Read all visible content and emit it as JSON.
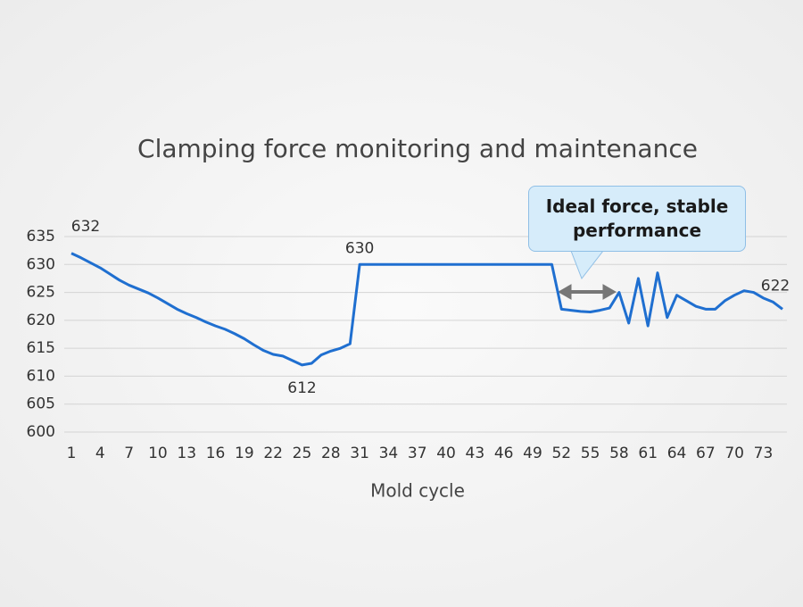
{
  "chart_data": {
    "type": "line",
    "title": "Clamping force monitoring and maintenance",
    "x_label": "Mold cycle",
    "annotation": "Ideal force, stable performance",
    "x": [
      1,
      2,
      3,
      4,
      5,
      6,
      7,
      8,
      9,
      10,
      11,
      12,
      13,
      14,
      15,
      16,
      17,
      18,
      19,
      20,
      21,
      22,
      23,
      24,
      25,
      26,
      27,
      28,
      29,
      30,
      31,
      32,
      33,
      34,
      35,
      36,
      37,
      38,
      39,
      40,
      41,
      42,
      43,
      44,
      45,
      46,
      47,
      48,
      49,
      50,
      51,
      52,
      53,
      54,
      55,
      56,
      57,
      58,
      59,
      60,
      61,
      62,
      63,
      64,
      65,
      66,
      67,
      68,
      69,
      70,
      71,
      72,
      73,
      74,
      75
    ],
    "series": [
      {
        "name": "Clamping force",
        "color": "#1f6fd0",
        "values": [
          632,
          631.2,
          630.3,
          629.4,
          628.3,
          627.2,
          626.3,
          625.6,
          624.9,
          624,
          623,
          622,
          621.2,
          620.5,
          619.7,
          619,
          618.4,
          617.6,
          616.7,
          615.6,
          614.6,
          613.9,
          613.6,
          612.8,
          612,
          612.3,
          613.8,
          614.5,
          615,
          615.8,
          630,
          630,
          630,
          630,
          630,
          630,
          630,
          630,
          630,
          630,
          630,
          630,
          630,
          630,
          630,
          630,
          630,
          630,
          630,
          630,
          630,
          622,
          621.8,
          621.6,
          621.5,
          621.8,
          622.2,
          625,
          619.5,
          627.5,
          619,
          628.5,
          620.5,
          624.5,
          623.5,
          622.5,
          622,
          622,
          623.5,
          624.5,
          625.3,
          625,
          624,
          623.3,
          622
        ]
      }
    ],
    "xlim": [
      1,
      75
    ],
    "xticks": [
      1,
      4,
      7,
      10,
      13,
      16,
      19,
      22,
      25,
      28,
      31,
      34,
      37,
      40,
      43,
      46,
      49,
      52,
      55,
      58,
      61,
      64,
      67,
      70,
      73
    ],
    "ylim": [
      600,
      635
    ],
    "yticks": [
      600,
      605,
      610,
      615,
      620,
      625,
      630,
      635
    ],
    "grid": true
  }
}
